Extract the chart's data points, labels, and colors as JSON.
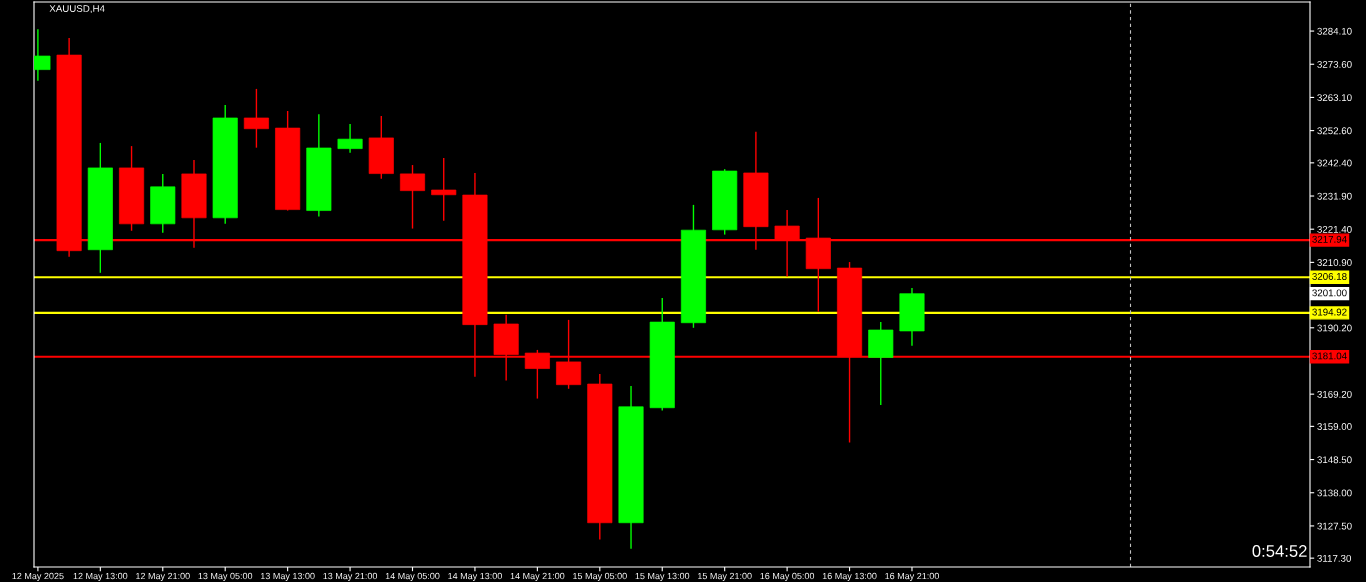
{
  "chart_data": {
    "type": "candlestick",
    "title": "XAUUSD,H4",
    "x": [
      "2025-05-12T05:00",
      "2025-05-12T09:00",
      "2025-05-12T13:00",
      "2025-05-12T17:00",
      "2025-05-12T21:00",
      "2025-05-13T01:00",
      "2025-05-13T05:00",
      "2025-05-13T09:00",
      "2025-05-13T13:00",
      "2025-05-13T17:00",
      "2025-05-13T21:00",
      "2025-05-14T01:00",
      "2025-05-14T05:00",
      "2025-05-14T09:00",
      "2025-05-14T13:00",
      "2025-05-14T17:00",
      "2025-05-14T21:00",
      "2025-05-15T01:00",
      "2025-05-15T05:00",
      "2025-05-15T09:00",
      "2025-05-15T13:00",
      "2025-05-15T17:00",
      "2025-05-15T21:00",
      "2025-05-16T01:00",
      "2025-05-16T05:00",
      "2025-05-16T09:00",
      "2025-05-16T13:00",
      "2025-05-16T17:00",
      "2025-05-16T21:00"
    ],
    "ohlc": [
      [
        3271.9,
        3284.7,
        3268.4,
        3276.2
      ],
      [
        3276.5,
        3281.9,
        3212.7,
        3214.6
      ],
      [
        3214.9,
        3248.7,
        3207.6,
        3240.8
      ],
      [
        3240.8,
        3247.7,
        3220.9,
        3223.1
      ],
      [
        3223.1,
        3238.9,
        3220.3,
        3234.8
      ],
      [
        3238.9,
        3243.3,
        3215.5,
        3225.0
      ],
      [
        3225.0,
        3260.7,
        3223.1,
        3256.6
      ],
      [
        3256.6,
        3265.8,
        3247.2,
        3253.2
      ],
      [
        3253.4,
        3258.8,
        3227.3,
        3227.6
      ],
      [
        3227.3,
        3257.8,
        3225.4,
        3247.1
      ],
      [
        3246.9,
        3254.7,
        3245.6,
        3249.9
      ],
      [
        3250.3,
        3257.2,
        3237.4,
        3239.0
      ],
      [
        3238.9,
        3241.7,
        3221.6,
        3233.6
      ],
      [
        3233.8,
        3243.9,
        3224.1,
        3232.3
      ],
      [
        3232.2,
        3239.2,
        3174.7,
        3191.2
      ],
      [
        3191.4,
        3194.3,
        3173.5,
        3181.7
      ],
      [
        3182.2,
        3183.2,
        3167.8,
        3177.3
      ],
      [
        3179.4,
        3192.7,
        3170.9,
        3172.2
      ],
      [
        3172.4,
        3175.6,
        3123.2,
        3128.5
      ],
      [
        3128.5,
        3171.8,
        3120.3,
        3165.2
      ],
      [
        3164.9,
        3199.6,
        3164.0,
        3192.0
      ],
      [
        3191.8,
        3229.1,
        3190.2,
        3221.1
      ],
      [
        3221.2,
        3240.4,
        3219.7,
        3239.8
      ],
      [
        3239.2,
        3252.2,
        3214.9,
        3222.2
      ],
      [
        3222.4,
        3227.5,
        3206.4,
        3218.0
      ],
      [
        3218.6,
        3231.3,
        3195.3,
        3208.9
      ],
      [
        3209.1,
        3211.0,
        3153.9,
        3181.0
      ],
      [
        3180.8,
        3192.0,
        3165.8,
        3189.5
      ],
      [
        3189.2,
        3202.8,
        3184.5,
        3201.0
      ]
    ],
    "colors": [
      "#00ff00",
      "#ff0000",
      "#00ff00",
      "#ff0000",
      "#00ff00",
      "#ff0000",
      "#00ff00",
      "#ff0000",
      "#ff0000",
      "#00ff00",
      "#00ff00",
      "#ff0000",
      "#ff0000",
      "#ff0000",
      "#ff0000",
      "#ff0000",
      "#ff0000",
      "#ff0000",
      "#ff0000",
      "#00ff00",
      "#00ff00",
      "#00ff00",
      "#00ff00",
      "#ff0000",
      "#ff0000",
      "#ff0000",
      "#ff0000",
      "#00ff00",
      "#00ff00"
    ],
    "xlim": [
      "2025-05-12T04:30",
      "2025-05-19T00:00"
    ],
    "xticks": [
      {
        "value": "2025-05-12T05:00",
        "label": "12 May 2025"
      },
      {
        "value": "2025-05-12T13:00",
        "label": "12 May 13:00"
      },
      {
        "value": "2025-05-12T21:00",
        "label": "12 May 21:00"
      },
      {
        "value": "2025-05-13T05:00",
        "label": "13 May 05:00"
      },
      {
        "value": "2025-05-13T13:00",
        "label": "13 May 13:00"
      },
      {
        "value": "2025-05-13T21:00",
        "label": "13 May 21:00"
      },
      {
        "value": "2025-05-14T05:00",
        "label": "14 May 05:00"
      },
      {
        "value": "2025-05-14T13:00",
        "label": "14 May 13:00"
      },
      {
        "value": "2025-05-14T21:00",
        "label": "14 May 21:00"
      },
      {
        "value": "2025-05-15T05:00",
        "label": "15 May 05:00"
      },
      {
        "value": "2025-05-15T13:00",
        "label": "15 May 13:00"
      },
      {
        "value": "2025-05-15T21:00",
        "label": "15 May 21:00"
      },
      {
        "value": "2025-05-16T05:00",
        "label": "16 May 05:00"
      },
      {
        "value": "2025-05-16T13:00",
        "label": "16 May 13:00"
      },
      {
        "value": "2025-05-16T21:00",
        "label": "16 May 21:00"
      }
    ],
    "ylim": [
      3114.5,
      3293.3
    ],
    "yticks": [
      {
        "value": 3284.1,
        "label": "3284.10"
      },
      {
        "value": 3273.6,
        "label": "3273.60"
      },
      {
        "value": 3263.1,
        "label": "3263.10"
      },
      {
        "value": 3252.6,
        "label": "3252.60"
      },
      {
        "value": 3242.4,
        "label": "3242.40"
      },
      {
        "value": 3231.9,
        "label": "3231.90"
      },
      {
        "value": 3221.4,
        "label": "3221.40"
      },
      {
        "value": 3210.9,
        "label": "3210.90"
      },
      {
        "value": 3190.2,
        "label": "3190.20"
      },
      {
        "value": 3169.2,
        "label": "3169.20"
      },
      {
        "value": 3159.0,
        "label": "3159.00"
      },
      {
        "value": 3148.5,
        "label": "3148.50"
      },
      {
        "value": 3138.0,
        "label": "3138.00"
      },
      {
        "value": 3127.5,
        "label": "3127.50"
      },
      {
        "value": 3117.3,
        "label": "3117.30"
      }
    ],
    "ref_lines": [
      {
        "axis": "y",
        "value": 3217.94,
        "label": "3217.94",
        "color": "#ff0000",
        "line_style": "solid"
      },
      {
        "axis": "y",
        "value": 3206.18,
        "label": "3206.18",
        "color": "#ffff00",
        "line_style": "solid"
      },
      {
        "axis": "y",
        "value": 3194.92,
        "label": "3194.92",
        "color": "#ffff00",
        "line_style": "solid"
      },
      {
        "axis": "y",
        "value": 3181.04,
        "label": "3181.04",
        "color": "#ff0000",
        "line_style": "solid"
      },
      {
        "axis": "x",
        "value": "2025-05-18T01:00",
        "color": "#c0c0c0",
        "line_style": "dashed"
      }
    ],
    "annotations": [
      "3201.00",
      "0:54:52"
    ],
    "grid": false
  }
}
